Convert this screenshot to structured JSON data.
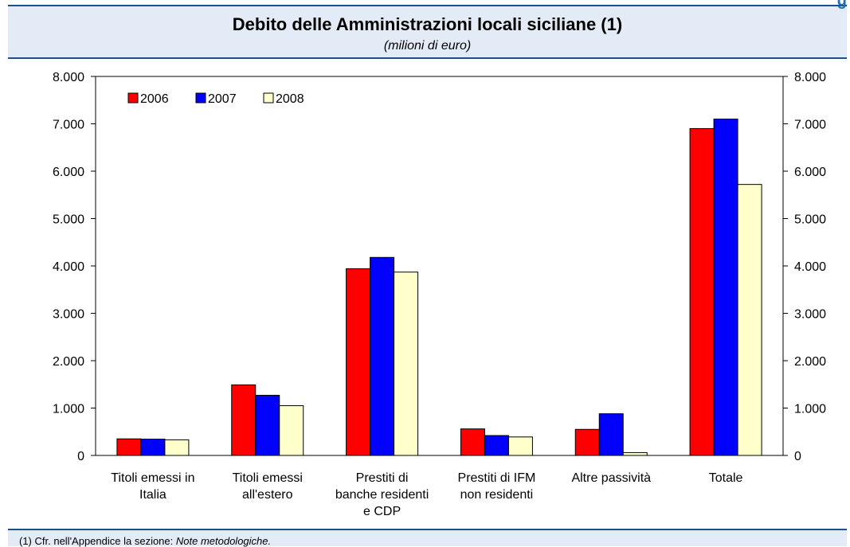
{
  "header": {
    "corner_label": "g",
    "title": "Debito delle Amministrazioni locali siciliane (1)",
    "subtitle": "(milioni di euro)"
  },
  "footer": {
    "note_prefix": "(1) Cfr. nell'Appendice la sezione: ",
    "note_italic": "Note metodologiche."
  },
  "chart_data": {
    "type": "bar",
    "categories": [
      [
        "Titoli emessi in",
        "Italia"
      ],
      [
        "Titoli emessi",
        "all'estero"
      ],
      [
        "Prestiti di",
        "banche residenti",
        "e CDP"
      ],
      [
        "Prestiti di IFM",
        "non residenti"
      ],
      [
        "Altre passività"
      ],
      [
        "Totale"
      ]
    ],
    "series": [
      {
        "name": "2006",
        "color": "#ff0000",
        "values": [
          350,
          1490,
          3940,
          560,
          550,
          6900
        ]
      },
      {
        "name": "2007",
        "color": "#0000ff",
        "values": [
          345,
          1270,
          4180,
          420,
          880,
          7100
        ]
      },
      {
        "name": "2008",
        "color": "#ffffcc",
        "values": [
          330,
          1050,
          3870,
          390,
          60,
          5720
        ]
      }
    ],
    "ylim": [
      0,
      8000
    ],
    "yticks": [
      "0",
      "1.000",
      "2.000",
      "3.000",
      "4.000",
      "5.000",
      "6.000",
      "7.000",
      "8.000"
    ],
    "legend_position": "top-left",
    "grid": false
  }
}
